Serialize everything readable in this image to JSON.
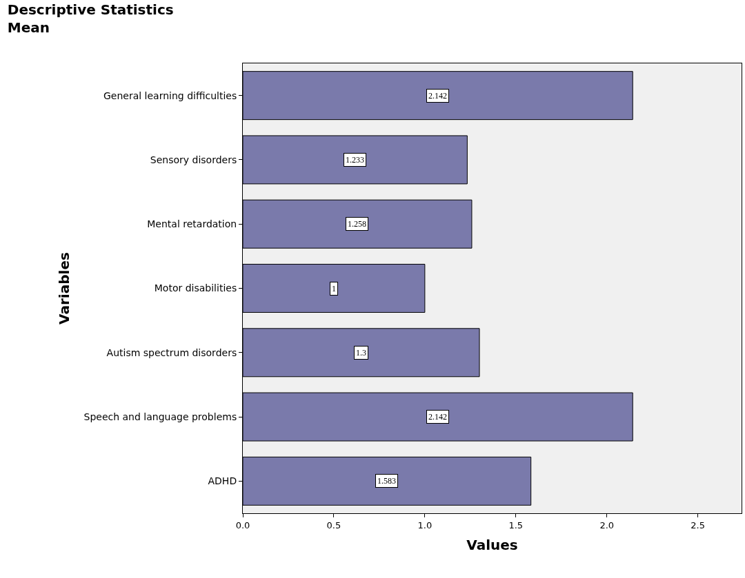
{
  "chart_data": {
    "type": "bar",
    "orientation": "horizontal",
    "title": "Descriptive Statistics",
    "subtitle": "Mean",
    "xlabel": "Values",
    "ylabel": "Variables",
    "categories": [
      "General learning difficulties",
      "Sensory disorders",
      "Mental retardation",
      "Motor disabilities",
      "Autism spectrum disorders",
      "Speech and language problems",
      "ADHD"
    ],
    "values": [
      2.142,
      1.233,
      1.258,
      1,
      1.3,
      2.142,
      1.583
    ],
    "color": "#7a7aab",
    "xlim": [
      0,
      2.74
    ],
    "xticks": [
      {
        "value": 0,
        "label": "0.0"
      },
      {
        "value": 0.5,
        "label": "0.5"
      },
      {
        "value": 1,
        "label": "1.0"
      },
      {
        "value": 1.5,
        "label": "1.5"
      },
      {
        "value": 2,
        "label": "2.0"
      },
      {
        "value": 2.5,
        "label": "2.5"
      }
    ],
    "data_labels": true,
    "grid": false,
    "legend": false
  }
}
